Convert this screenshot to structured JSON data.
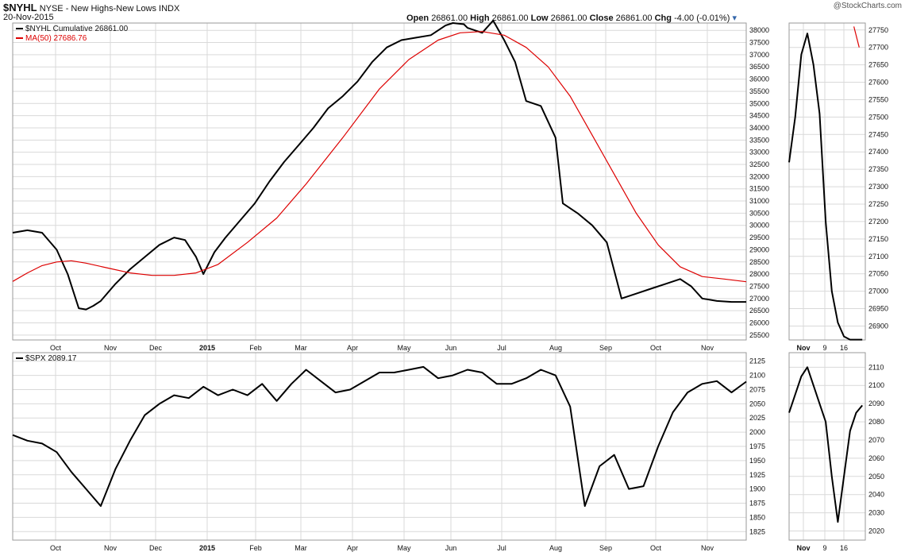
{
  "header": {
    "symbol": "$NYHL",
    "description": "NYSE - New Highs-New Lows INDX",
    "date": "20-Nov-2015",
    "watermark": "@StockCharts.com",
    "ohlc": {
      "open_label": "Open",
      "open": "26861.00",
      "high_label": "High",
      "high": "26861.00",
      "low_label": "Low",
      "low": "26861.00",
      "close_label": "Close",
      "close": "26861.00",
      "chg_label": "Chg",
      "chg": "-4.00 (-0.01%)"
    }
  },
  "colors": {
    "price_line": "#000000",
    "ma_line": "#dd0000",
    "grid": "#d9d9d9",
    "border": "#9a9a9a"
  },
  "chart_data": [
    {
      "type": "line",
      "name": "main-nyhl",
      "legend": [
        "$NYHL Cumulative 26861.00",
        "MA(50) 27686.76"
      ],
      "x_ticks": [
        "Oct",
        "Nov",
        "Dec",
        "2015",
        "Feb",
        "Mar",
        "Apr",
        "May",
        "Jun",
        "Jul",
        "Aug",
        "Sep",
        "Oct",
        "Nov"
      ],
      "y_ticks": [
        25500,
        26000,
        26500,
        27000,
        27500,
        28000,
        28500,
        29000,
        29500,
        30000,
        30500,
        31000,
        31500,
        32000,
        32500,
        33000,
        33500,
        34000,
        34500,
        35000,
        35500,
        36000,
        36500,
        37000,
        37500,
        38000
      ],
      "ylim": [
        25300,
        38300
      ],
      "series": [
        {
          "name": "$NYHL Cumulative 26861.00",
          "x": [
            0,
            0.02,
            0.04,
            0.06,
            0.075,
            0.09,
            0.1,
            0.11,
            0.12,
            0.14,
            0.16,
            0.18,
            0.2,
            0.22,
            0.235,
            0.25,
            0.26,
            0.275,
            0.29,
            0.31,
            0.33,
            0.35,
            0.37,
            0.39,
            0.41,
            0.43,
            0.45,
            0.47,
            0.49,
            0.51,
            0.53,
            0.55,
            0.57,
            0.59,
            0.6,
            0.615,
            0.62,
            0.64,
            0.655,
            0.67,
            0.685,
            0.7,
            0.72,
            0.74,
            0.75,
            0.77,
            0.79,
            0.81,
            0.83,
            0.85,
            0.87,
            0.89,
            0.91,
            0.925,
            0.94,
            0.96,
            0.98,
            1.0
          ],
          "values": [
            29700,
            29800,
            29700,
            29000,
            28000,
            26600,
            26550,
            26700,
            26900,
            27600,
            28200,
            28700,
            29200,
            29500,
            29400,
            28700,
            28000,
            28900,
            29500,
            30200,
            30900,
            31800,
            32600,
            33300,
            34000,
            34800,
            35300,
            35900,
            36700,
            37300,
            37600,
            37700,
            37800,
            38200,
            38300,
            38250,
            38100,
            37900,
            38400,
            37600,
            36700,
            35100,
            34900,
            33600,
            30900,
            30500,
            30000,
            29300,
            27000,
            27200,
            27400,
            27600,
            27800,
            27500,
            27000,
            26900,
            26861,
            26861
          ]
        },
        {
          "name": "MA(50) 27686.76",
          "x": [
            0,
            0.02,
            0.04,
            0.06,
            0.08,
            0.1,
            0.13,
            0.16,
            0.19,
            0.22,
            0.25,
            0.28,
            0.32,
            0.36,
            0.4,
            0.45,
            0.5,
            0.54,
            0.58,
            0.61,
            0.64,
            0.67,
            0.7,
            0.73,
            0.76,
            0.79,
            0.82,
            0.85,
            0.88,
            0.91,
            0.94,
            0.97,
            1.0
          ],
          "values": [
            27700,
            28050,
            28350,
            28500,
            28550,
            28450,
            28250,
            28050,
            27950,
            27950,
            28050,
            28400,
            29300,
            30300,
            31700,
            33600,
            35600,
            36800,
            37600,
            37900,
            37950,
            37800,
            37300,
            36500,
            35300,
            33700,
            32100,
            30500,
            29200,
            28300,
            27900,
            27800,
            27686.76
          ]
        }
      ]
    },
    {
      "type": "line",
      "name": "zoom-nyhl",
      "x_ticks": [
        "Nov",
        "9",
        "16"
      ],
      "y_ticks": [
        26900,
        26950,
        27000,
        27050,
        27100,
        27150,
        27200,
        27250,
        27300,
        27350,
        27400,
        27450,
        27500,
        27550,
        27600,
        27650,
        27700,
        27750
      ],
      "ylim": [
        26860,
        27770
      ],
      "series": [
        {
          "name": "$NYHL Cumulative 26861.00",
          "x": [
            0,
            0.08,
            0.16,
            0.24,
            0.32,
            0.4,
            0.48,
            0.56,
            0.64,
            0.72,
            0.8,
            0.88,
            0.96
          ],
          "values": [
            27370,
            27500,
            27680,
            27740,
            27650,
            27510,
            27200,
            27000,
            26910,
            26870,
            26861,
            26861,
            26861
          ]
        },
        {
          "name": "MA(50) 27686.76",
          "x": [
            0.85,
            0.92
          ],
          "values": [
            27760,
            27700
          ]
        }
      ]
    },
    {
      "type": "line",
      "name": "main-spx",
      "legend": [
        "$SPX 2089.17"
      ],
      "x_ticks": [
        "Oct",
        "Nov",
        "Dec",
        "2015",
        "Feb",
        "Mar",
        "Apr",
        "May",
        "Jun",
        "Jul",
        "Aug",
        "Sep",
        "Oct",
        "Nov"
      ],
      "y_ticks": [
        1825,
        1850,
        1875,
        1900,
        1925,
        1950,
        1975,
        2000,
        2025,
        2050,
        2075,
        2100,
        2125
      ],
      "ylim": [
        1810,
        2140
      ],
      "series": [
        {
          "name": "$SPX 2089.17",
          "x": [
            0,
            0.02,
            0.04,
            0.06,
            0.08,
            0.1,
            0.12,
            0.14,
            0.16,
            0.18,
            0.2,
            0.22,
            0.24,
            0.26,
            0.28,
            0.3,
            0.32,
            0.34,
            0.36,
            0.38,
            0.4,
            0.42,
            0.44,
            0.46,
            0.48,
            0.5,
            0.52,
            0.54,
            0.56,
            0.58,
            0.6,
            0.62,
            0.64,
            0.66,
            0.68,
            0.7,
            0.72,
            0.74,
            0.76,
            0.78,
            0.8,
            0.82,
            0.84,
            0.86,
            0.88,
            0.9,
            0.92,
            0.94,
            0.96,
            0.98,
            1.0
          ],
          "values": [
            1995,
            1985,
            1980,
            1965,
            1930,
            1900,
            1870,
            1935,
            1985,
            2030,
            2050,
            2065,
            2060,
            2080,
            2065,
            2075,
            2065,
            2085,
            2055,
            2085,
            2110,
            2090,
            2070,
            2075,
            2090,
            2105,
            2105,
            2110,
            2115,
            2095,
            2100,
            2110,
            2105,
            2085,
            2085,
            2095,
            2110,
            2100,
            2045,
            1870,
            1940,
            1960,
            1900,
            1905,
            1975,
            2035,
            2070,
            2085,
            2090,
            2070,
            2089
          ]
        }
      ]
    },
    {
      "type": "line",
      "name": "zoom-spx",
      "x_ticks": [
        "Nov",
        "9",
        "16"
      ],
      "y_ticks": [
        2020,
        2030,
        2040,
        2050,
        2060,
        2070,
        2080,
        2090,
        2100,
        2110
      ],
      "ylim": [
        2015,
        2118
      ],
      "series": [
        {
          "name": "$SPX 2089.17",
          "x": [
            0,
            0.08,
            0.16,
            0.24,
            0.32,
            0.4,
            0.48,
            0.56,
            0.64,
            0.72,
            0.8,
            0.88,
            0.96
          ],
          "values": [
            2085,
            2095,
            2105,
            2110,
            2100,
            2090,
            2080,
            2050,
            2025,
            2050,
            2075,
            2085,
            2089
          ]
        }
      ]
    }
  ]
}
